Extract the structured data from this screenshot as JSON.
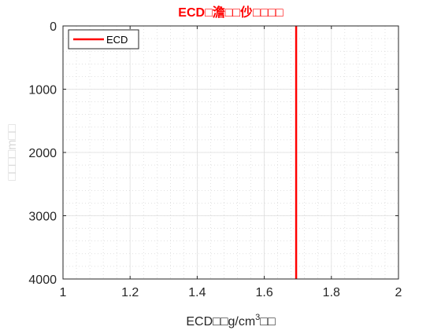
{
  "chart_data": {
    "type": "line",
    "title": "ECD□澹□□仯□□□□",
    "title_color": "#ff0000",
    "xlabel_main": "ECD□□g/cm",
    "xlabel_sup": "3",
    "xlabel_tail": "□□",
    "ylabel": "□□□□m□□",
    "ylabel_color": "#d9d9d9",
    "xlim": [
      1,
      2
    ],
    "ylim": [
      0,
      4000
    ],
    "y_reversed": true,
    "x_ticks": [
      1,
      1.2,
      1.4,
      1.6,
      1.8,
      2
    ],
    "x_tick_labels": [
      "1",
      "1.2",
      "1.4",
      "1.6",
      "1.8",
      "2"
    ],
    "y_ticks": [
      0,
      1000,
      2000,
      3000,
      4000
    ],
    "y_tick_labels": [
      "0",
      "1000",
      "2000",
      "3000",
      "4000"
    ],
    "grid": true,
    "minor_grid": true,
    "legend_position": "top-left",
    "series": [
      {
        "name": "ECD",
        "color": "#ff0000",
        "x": [
          1.695,
          1.695
        ],
        "y": [
          0,
          4000
        ]
      }
    ]
  }
}
